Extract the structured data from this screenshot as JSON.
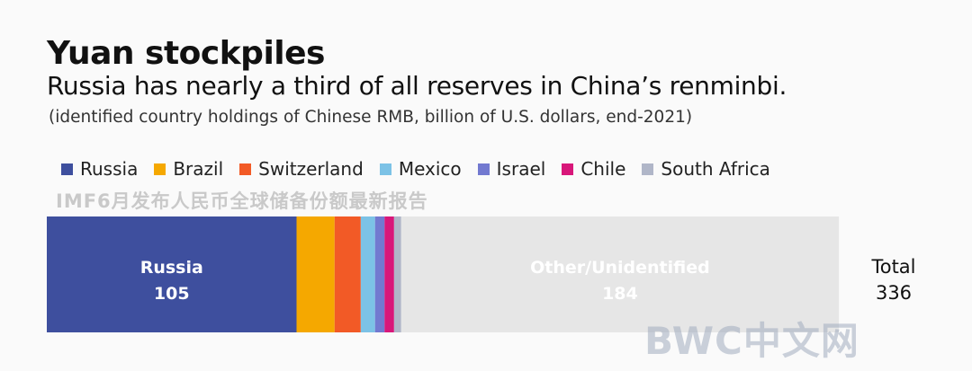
{
  "chart_data": {
    "type": "bar",
    "orientation": "horizontal-stacked",
    "title": "Yuan stockpiles",
    "subtitle": "Russia has nearly a third of all reserves in China’s renminbi.",
    "note": "(identified country holdings of Chinese RMB, billion of U.S. dollars, end-2021)",
    "legend_position": "top-left",
    "series": [
      {
        "name": "Russia",
        "value": 105,
        "color": "#3e4f9e",
        "label": "Russia",
        "value_label": "105"
      },
      {
        "name": "Brazil",
        "value": 16,
        "color": "#f5a800"
      },
      {
        "name": "Switzerland",
        "value": 11,
        "color": "#f25a26"
      },
      {
        "name": "Mexico",
        "value": 6,
        "color": "#7cc2e6"
      },
      {
        "name": "Israel",
        "value": 4,
        "color": "#7279d0"
      },
      {
        "name": "Chile",
        "value": 4,
        "color": "#d8177a"
      },
      {
        "name": "South Africa",
        "value": 3,
        "color": "#b0b6c8"
      }
    ],
    "other": {
      "name": "Other/Unidentified",
      "value": 184,
      "color": "#e6e6e6",
      "label": "Other/Unidentified",
      "value_label": "184"
    },
    "total": {
      "label": "Total",
      "value": 336
    }
  },
  "watermarks": {
    "top": "IMF6月发布人民币全球储备份额最新报告",
    "bottom": "BWC中文网"
  }
}
